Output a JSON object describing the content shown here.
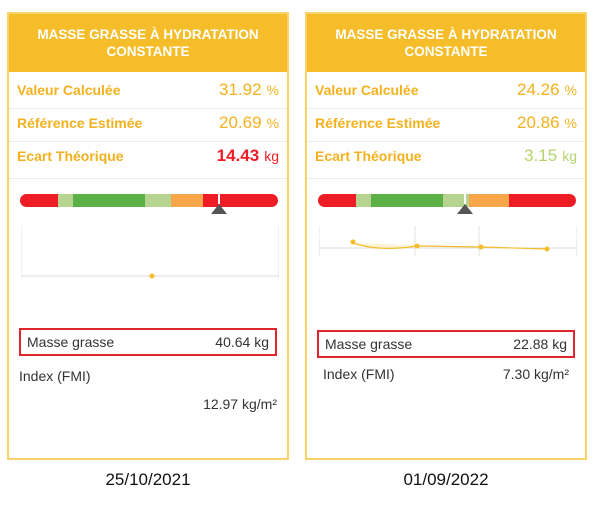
{
  "cards": [
    {
      "title": "MASSE GRASSE À HYDRATATION CONSTANTE",
      "valeur_label": "Valeur Calculée",
      "valeur_value": "31.92",
      "valeur_unit": "%",
      "reference_label": "Référence Estimée",
      "reference_value": "20.69",
      "reference_unit": "%",
      "ecart_label": "Ecart Théorique",
      "ecart_value": "14.43",
      "ecart_unit": "kg",
      "ecart_color": "#ee1c25",
      "gauge_position": 0.77,
      "masse_label": "Masse grasse",
      "masse_value": "40.64 kg",
      "index_label": "Index (FMI)",
      "index_value": "12.97 kg/m²",
      "date": "25/10/2021"
    },
    {
      "title": "MASSE GRASSE À HYDRATATION CONSTANTE",
      "valeur_label": "Valeur Calculée",
      "valeur_value": "24.26",
      "valeur_unit": "%",
      "reference_label": "Référence Estimée",
      "reference_value": "20.86",
      "reference_unit": "%",
      "ecart_label": "Ecart Théorique",
      "ecart_value": "3.15",
      "ecart_unit": "kg",
      "ecart_color": "#b5d46b",
      "gauge_position": 0.57,
      "masse_label": "Masse grasse",
      "masse_value": "22.88 kg",
      "index_label": "Index (FMI)",
      "index_value": "7.30 kg/m²",
      "date": "01/09/2022"
    }
  ],
  "colors": {
    "header": "#f5bd2a",
    "label": "#f3b11d",
    "gauge_red": "#ee1c25",
    "gauge_light_green": "#b6d48f",
    "gauge_green": "#5cb146",
    "gauge_orange": "#f7a64a",
    "highlight_border": "#e0242f"
  },
  "icons": {
    "gauge_pointer": "triangle-up-icon"
  }
}
